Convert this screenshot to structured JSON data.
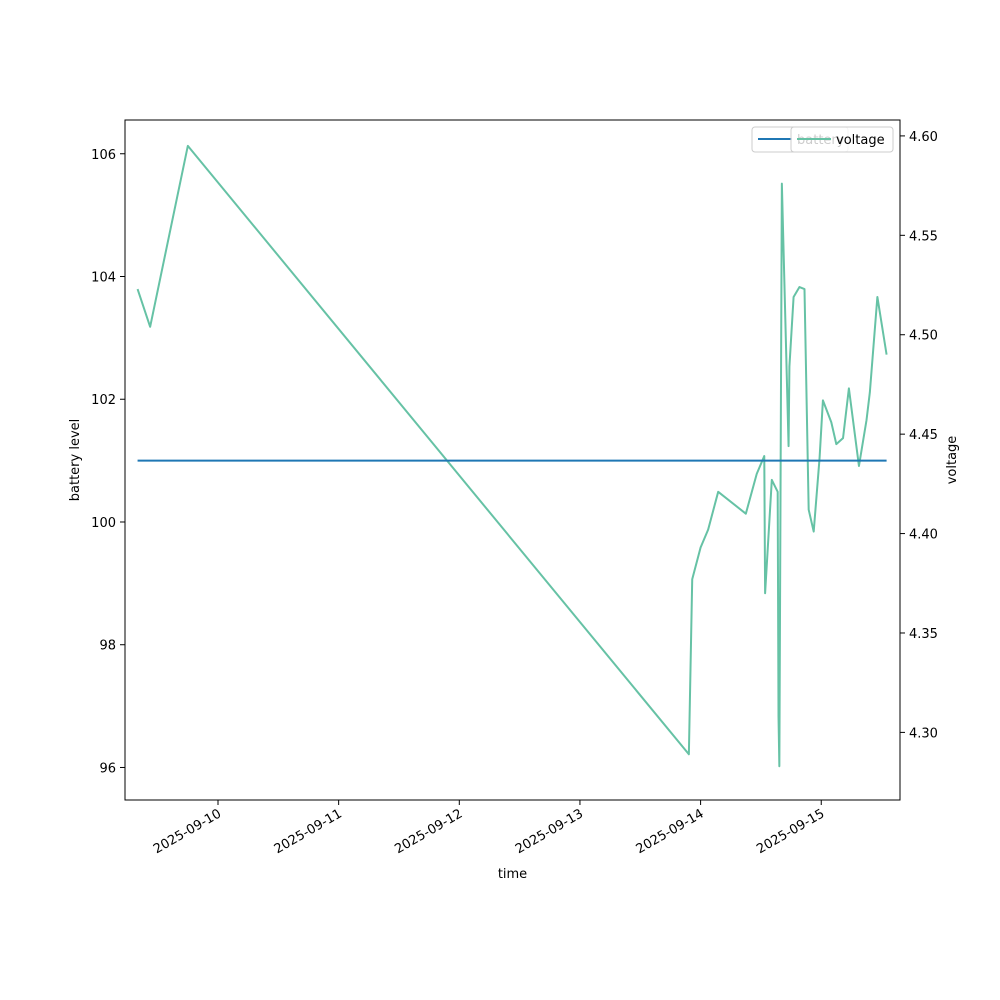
{
  "chart_data": {
    "type": "line",
    "xlabel": "time",
    "ylabel": "battery level",
    "y2label": "voltage",
    "x_tick_labels": [
      "2025-09-10",
      "2025-09-11",
      "2025-09-12",
      "2025-09-13",
      "2025-09-14",
      "2025-09-15"
    ],
    "xlim": [
      "2025-09-09T05:30",
      "2025-09-15T15:40"
    ],
    "ylim": [
      95.47,
      106.55
    ],
    "y2lim": [
      4.266,
      4.608
    ],
    "y_ticks": [
      96,
      98,
      100,
      102,
      104,
      106
    ],
    "y2_ticks": [
      4.3,
      4.35,
      4.4,
      4.45,
      4.5,
      4.55,
      4.6
    ],
    "grid": false,
    "legend_position": "top-right",
    "colors": {
      "battery": "#1f77b4",
      "voltage": "#66c2a5"
    },
    "series": [
      {
        "name": "battery",
        "axis": "left",
        "points": [
          {
            "x": "2025-09-09T08:00",
            "y": 101
          },
          {
            "x": "2025-09-15T13:00",
            "y": 101
          }
        ]
      },
      {
        "name": "voltage",
        "axis": "right",
        "points": [
          {
            "x": "2025-09-09T08:00",
            "y": 4.523
          },
          {
            "x": "2025-09-09T10:30",
            "y": 4.504
          },
          {
            "x": "2025-09-09T18:00",
            "y": 4.595
          },
          {
            "x": "2025-09-13T21:40",
            "y": 4.289
          },
          {
            "x": "2025-09-13T22:20",
            "y": 4.377
          },
          {
            "x": "2025-09-14T00:00",
            "y": 4.393
          },
          {
            "x": "2025-09-14T01:30",
            "y": 4.402
          },
          {
            "x": "2025-09-14T03:30",
            "y": 4.421
          },
          {
            "x": "2025-09-14T09:00",
            "y": 4.41
          },
          {
            "x": "2025-09-14T11:10",
            "y": 4.43
          },
          {
            "x": "2025-09-14T12:40",
            "y": 4.439
          },
          {
            "x": "2025-09-14T12:50",
            "y": 4.37
          },
          {
            "x": "2025-09-14T14:10",
            "y": 4.427
          },
          {
            "x": "2025-09-14T15:20",
            "y": 4.421
          },
          {
            "x": "2025-09-14T15:30",
            "y": 4.308
          },
          {
            "x": "2025-09-14T15:40",
            "y": 4.283
          },
          {
            "x": "2025-09-14T16:10",
            "y": 4.576
          },
          {
            "x": "2025-09-14T17:30",
            "y": 4.444
          },
          {
            "x": "2025-09-14T17:40",
            "y": 4.484
          },
          {
            "x": "2025-09-14T18:30",
            "y": 4.519
          },
          {
            "x": "2025-09-14T19:40",
            "y": 4.524
          },
          {
            "x": "2025-09-14T20:40",
            "y": 4.523
          },
          {
            "x": "2025-09-14T21:30",
            "y": 4.412
          },
          {
            "x": "2025-09-14T22:30",
            "y": 4.401
          },
          {
            "x": "2025-09-14T23:40",
            "y": 4.438
          },
          {
            "x": "2025-09-15T00:20",
            "y": 4.467
          },
          {
            "x": "2025-09-15T02:00",
            "y": 4.456
          },
          {
            "x": "2025-09-15T03:00",
            "y": 4.445
          },
          {
            "x": "2025-09-15T04:20",
            "y": 4.448
          },
          {
            "x": "2025-09-15T05:30",
            "y": 4.473
          },
          {
            "x": "2025-09-15T07:30",
            "y": 4.434
          },
          {
            "x": "2025-09-15T09:00",
            "y": 4.457
          },
          {
            "x": "2025-09-15T09:40",
            "y": 4.471
          },
          {
            "x": "2025-09-15T11:10",
            "y": 4.519
          },
          {
            "x": "2025-09-15T13:00",
            "y": 4.49
          }
        ]
      }
    ]
  }
}
